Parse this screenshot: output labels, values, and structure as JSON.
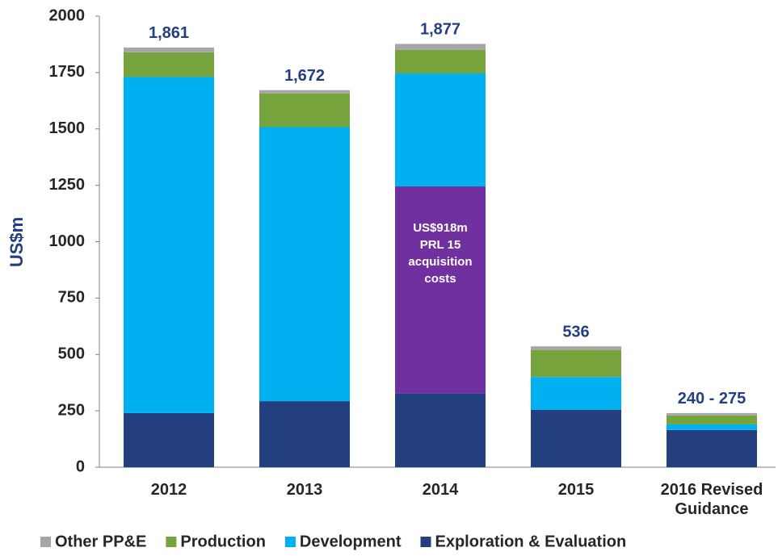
{
  "chart_data": {
    "type": "stacked_bar",
    "y_label": "US$m",
    "categories": [
      "2012",
      "2013",
      "2014",
      "2015",
      "2016 Revised Guidance"
    ],
    "series": [
      {
        "name": "Exploration & Evaluation",
        "color": "#243f7f",
        "values": [
          240,
          293,
          327,
          255,
          165
        ]
      },
      {
        "color": "#7030a0",
        "values": [
          null,
          null,
          918,
          null,
          null
        ]
      },
      {
        "name": "Development",
        "color": "#00b0f0",
        "values": [
          1490,
          1215,
          501,
          145,
          25
        ]
      },
      {
        "name": "Production",
        "color": "#77a33c",
        "values": [
          110,
          149,
          104,
          120,
          40
        ]
      },
      {
        "name": "Other PP&E",
        "color": "#a6a6a6",
        "values": [
          21,
          15,
          27,
          16,
          10
        ]
      }
    ],
    "totals": [
      1861,
      1672,
      1877,
      536,
      240
    ],
    "totals_labels": [
      "1,861",
      "1,672",
      "1,877",
      "536",
      "240 - 275"
    ],
    "annotation": {
      "lines": [
        "US$918m",
        "PRL 15",
        "acquisition",
        "costs"
      ]
    },
    "ylim": [
      0,
      2000
    ],
    "yticks": [
      0,
      250,
      500,
      750,
      1000,
      1250,
      1500,
      1750,
      2000
    ],
    "grid": false
  }
}
